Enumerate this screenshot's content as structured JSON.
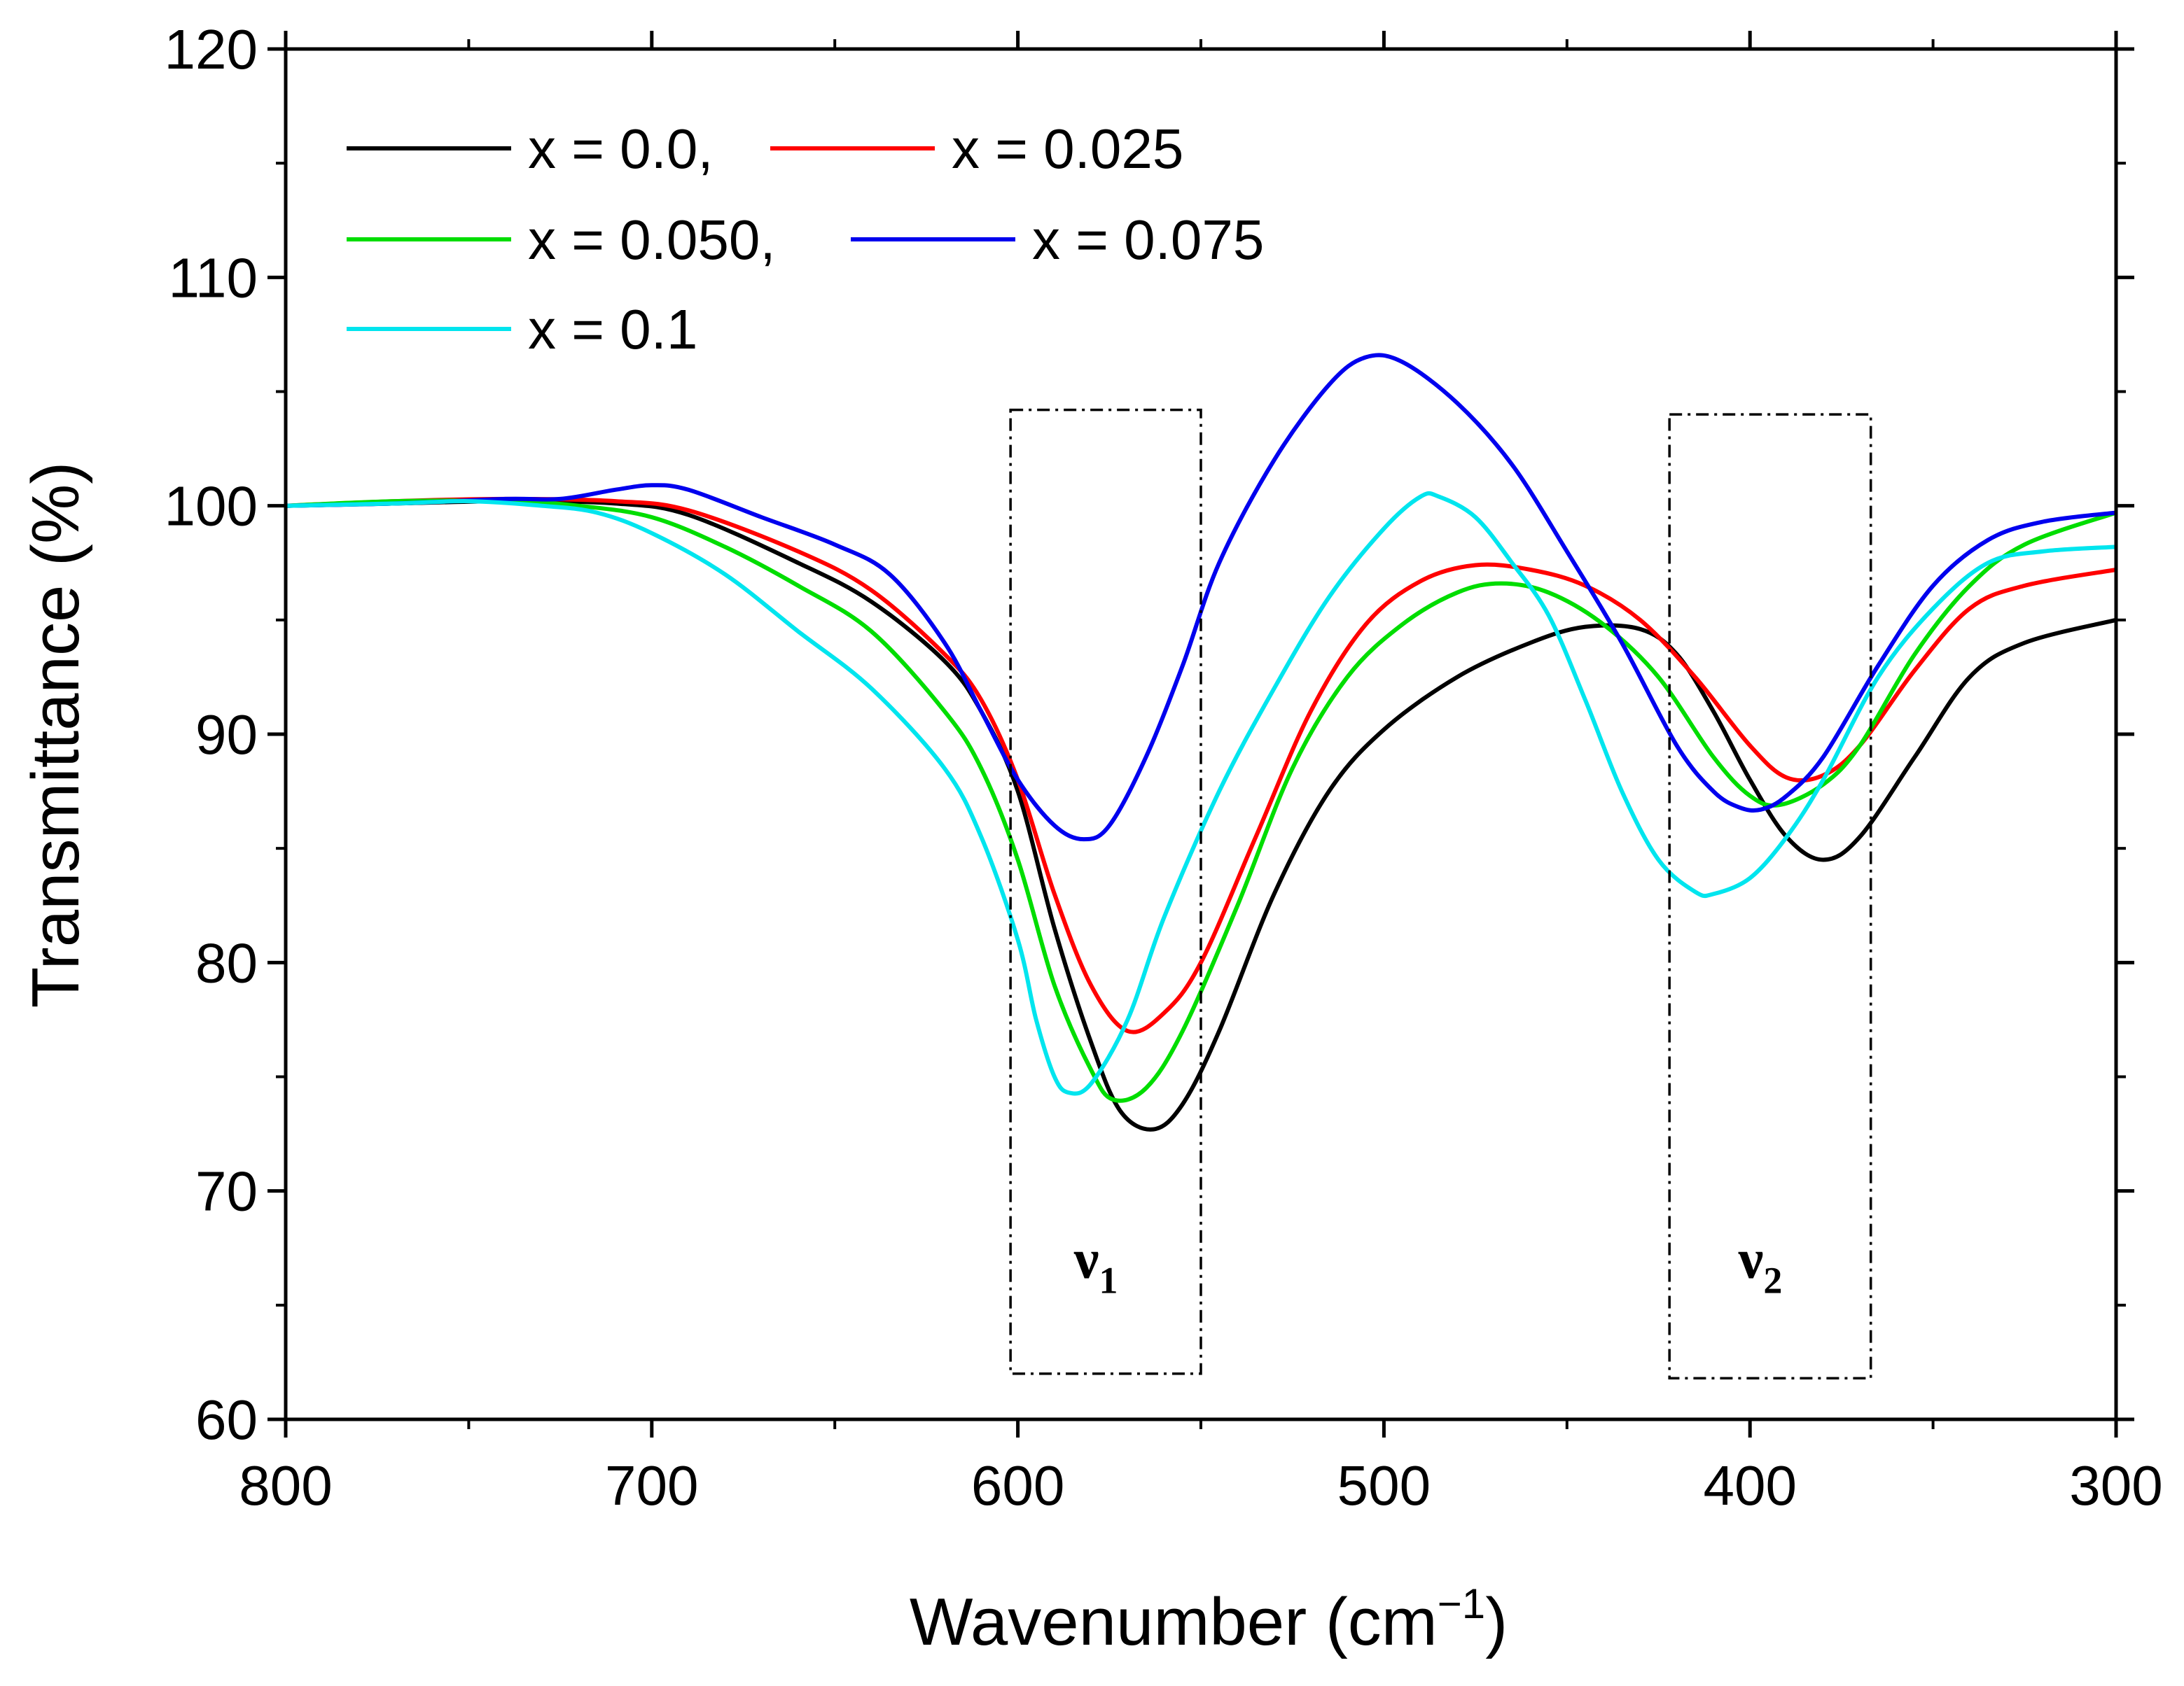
{
  "chart_data": {
    "type": "line",
    "title": "",
    "xlabel": "Wavenumber (cm",
    "xlabel_sup": "−1",
    "xlabel_close": ")",
    "ylabel": "Transmittance (%)",
    "xlim": [
      800,
      300
    ],
    "ylim": [
      60,
      120
    ],
    "x_ticks": [
      800,
      700,
      600,
      500,
      400,
      300
    ],
    "y_ticks": [
      60,
      70,
      80,
      90,
      100,
      110,
      120
    ],
    "grid": false,
    "legend_position": "top-left",
    "legend": [
      {
        "label": "x = 0.0,",
        "series": 0
      },
      {
        "label": "x = 0.025",
        "series": 1
      },
      {
        "label": "x = 0.050,",
        "series": 2
      },
      {
        "label": "x = 0.075",
        "series": 3
      },
      {
        "label": "x = 0.1",
        "series": 4
      }
    ],
    "annotations": [
      {
        "label": "ν",
        "sub": "1",
        "x_range": [
          602,
          550
        ],
        "y_range": [
          62,
          104.2
        ]
      },
      {
        "label": "ν",
        "sub": "2",
        "x_range": [
          422,
          367
        ],
        "y_range": [
          61.8,
          104
        ]
      }
    ],
    "series": [
      {
        "name": "x = 0.0",
        "color": "#000000",
        "points": [
          [
            800,
            100
          ],
          [
            770,
            100.1
          ],
          [
            740,
            100.2
          ],
          [
            710,
            100.1
          ],
          [
            690,
            99.6
          ],
          [
            660,
            97.5
          ],
          [
            640,
            95.8
          ],
          [
            620,
            93.2
          ],
          [
            610,
            91
          ],
          [
            600,
            87.5
          ],
          [
            590,
            81.5
          ],
          [
            580,
            76.5
          ],
          [
            572,
            73.5
          ],
          [
            563,
            72.7
          ],
          [
            555,
            73.8
          ],
          [
            545,
            77
          ],
          [
            530,
            83
          ],
          [
            515,
            87.5
          ],
          [
            500,
            90.2
          ],
          [
            480,
            92.5
          ],
          [
            460,
            94
          ],
          [
            445,
            94.7
          ],
          [
            430,
            94.6
          ],
          [
            420,
            93.5
          ],
          [
            410,
            91
          ],
          [
            400,
            88
          ],
          [
            390,
            85.5
          ],
          [
            380,
            84.5
          ],
          [
            370,
            85.5
          ],
          [
            355,
            89
          ],
          [
            340,
            92.5
          ],
          [
            325,
            94
          ],
          [
            300,
            95
          ]
        ]
      },
      {
        "name": "x = 0.025",
        "color": "#ff0000",
        "points": [
          [
            800,
            100
          ],
          [
            770,
            100.2
          ],
          [
            740,
            100.3
          ],
          [
            710,
            100.2
          ],
          [
            690,
            99.8
          ],
          [
            660,
            98
          ],
          [
            640,
            96.3
          ],
          [
            620,
            93.5
          ],
          [
            610,
            91.5
          ],
          [
            600,
            88
          ],
          [
            590,
            83
          ],
          [
            580,
            79
          ],
          [
            570,
            77
          ],
          [
            560,
            77.8
          ],
          [
            550,
            80
          ],
          [
            535,
            85.5
          ],
          [
            520,
            91
          ],
          [
            505,
            94.8
          ],
          [
            490,
            96.7
          ],
          [
            475,
            97.4
          ],
          [
            460,
            97.2
          ],
          [
            445,
            96.5
          ],
          [
            430,
            95
          ],
          [
            415,
            92.5
          ],
          [
            400,
            89.5
          ],
          [
            390,
            88.1
          ],
          [
            380,
            88.2
          ],
          [
            370,
            89.5
          ],
          [
            355,
            92.8
          ],
          [
            340,
            95.5
          ],
          [
            325,
            96.5
          ],
          [
            300,
            97.2
          ]
        ]
      },
      {
        "name": "x = 0.050",
        "color": "#00dd00",
        "points": [
          [
            800,
            100
          ],
          [
            770,
            100.2
          ],
          [
            740,
            100.2
          ],
          [
            720,
            100
          ],
          [
            700,
            99.5
          ],
          [
            680,
            98.2
          ],
          [
            660,
            96.5
          ],
          [
            640,
            94.5
          ],
          [
            620,
            91
          ],
          [
            610,
            88.5
          ],
          [
            600,
            84.5
          ],
          [
            590,
            79
          ],
          [
            580,
            75.3
          ],
          [
            574,
            74
          ],
          [
            565,
            74.5
          ],
          [
            555,
            77
          ],
          [
            540,
            82.5
          ],
          [
            525,
            88.5
          ],
          [
            510,
            92.5
          ],
          [
            495,
            94.8
          ],
          [
            480,
            96.2
          ],
          [
            468,
            96.6
          ],
          [
            455,
            96.2
          ],
          [
            440,
            94.8
          ],
          [
            425,
            92.5
          ],
          [
            410,
            89
          ],
          [
            400,
            87.3
          ],
          [
            392,
            86.9
          ],
          [
            380,
            87.8
          ],
          [
            370,
            89.5
          ],
          [
            355,
            93.5
          ],
          [
            340,
            96.5
          ],
          [
            325,
            98.3
          ],
          [
            300,
            99.7
          ]
        ]
      },
      {
        "name": "x = 0.075",
        "color": "#0000ee",
        "points": [
          [
            800,
            100
          ],
          [
            770,
            100.1
          ],
          [
            740,
            100.3
          ],
          [
            725,
            100.3
          ],
          [
            710,
            100.7
          ],
          [
            700,
            100.9
          ],
          [
            690,
            100.7
          ],
          [
            670,
            99.5
          ],
          [
            650,
            98.3
          ],
          [
            635,
            97
          ],
          [
            620,
            94
          ],
          [
            610,
            91
          ],
          [
            600,
            88
          ],
          [
            590,
            86
          ],
          [
            582,
            85.4
          ],
          [
            575,
            86
          ],
          [
            565,
            89
          ],
          [
            555,
            93
          ],
          [
            545,
            97.5
          ],
          [
            530,
            102
          ],
          [
            515,
            105.3
          ],
          [
            505,
            106.5
          ],
          [
            495,
            106.3
          ],
          [
            480,
            104.5
          ],
          [
            465,
            101.8
          ],
          [
            450,
            98
          ],
          [
            435,
            94
          ],
          [
            420,
            89.5
          ],
          [
            410,
            87.5
          ],
          [
            403,
            86.8
          ],
          [
            397,
            86.7
          ],
          [
            390,
            87.3
          ],
          [
            380,
            89
          ],
          [
            365,
            93
          ],
          [
            350,
            96.5
          ],
          [
            335,
            98.5
          ],
          [
            320,
            99.3
          ],
          [
            300,
            99.7
          ]
        ]
      },
      {
        "name": "x = 0.1",
        "color": "#00e5ee",
        "points": [
          [
            800,
            100
          ],
          [
            770,
            100.1
          ],
          [
            750,
            100.2
          ],
          [
            730,
            100
          ],
          [
            715,
            99.7
          ],
          [
            700,
            98.8
          ],
          [
            680,
            97
          ],
          [
            660,
            94.5
          ],
          [
            640,
            92
          ],
          [
            620,
            88.5
          ],
          [
            610,
            85.5
          ],
          [
            600,
            81
          ],
          [
            595,
            77.5
          ],
          [
            590,
            75
          ],
          [
            586,
            74.3
          ],
          [
            580,
            74.7
          ],
          [
            570,
            77.5
          ],
          [
            560,
            82
          ],
          [
            545,
            87.5
          ],
          [
            530,
            92
          ],
          [
            515,
            96
          ],
          [
            500,
            99
          ],
          [
            490,
            100.4
          ],
          [
            485,
            100.4
          ],
          [
            475,
            99.5
          ],
          [
            465,
            97.5
          ],
          [
            455,
            95.2
          ],
          [
            445,
            91.5
          ],
          [
            435,
            87.5
          ],
          [
            425,
            84.5
          ],
          [
            415,
            83.1
          ],
          [
            410,
            83
          ],
          [
            400,
            83.7
          ],
          [
            390,
            85.5
          ],
          [
            380,
            88
          ],
          [
            365,
            92.5
          ],
          [
            350,
            95.5
          ],
          [
            335,
            97.5
          ],
          [
            320,
            98
          ],
          [
            300,
            98.2
          ]
        ]
      }
    ]
  }
}
